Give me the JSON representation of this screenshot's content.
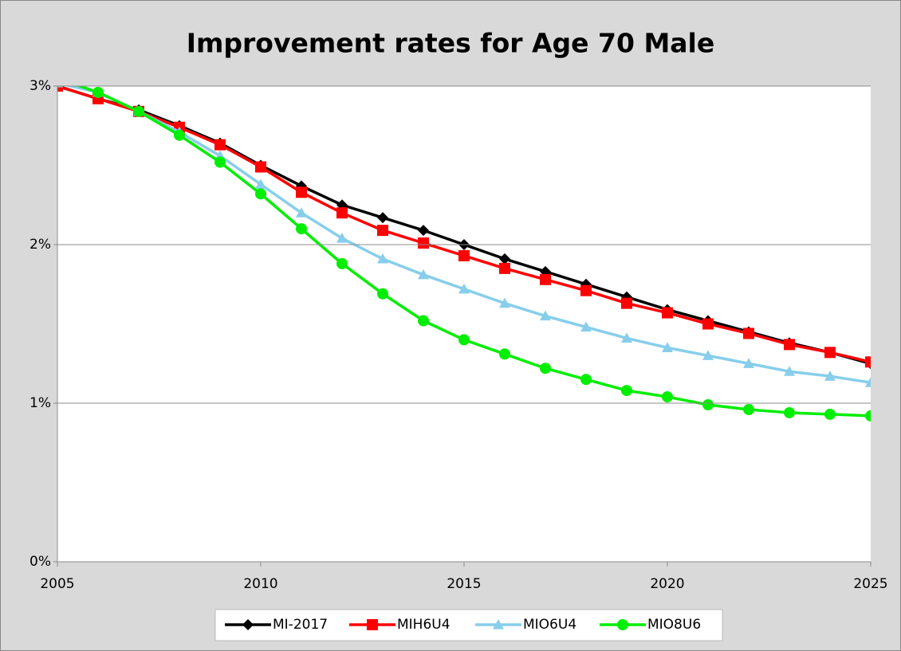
{
  "chart_data": {
    "type": "line",
    "title": "Improvement rates for Age 70 Male",
    "x": [
      2005,
      2006,
      2007,
      2008,
      2009,
      2010,
      2011,
      2012,
      2013,
      2014,
      2015,
      2016,
      2017,
      2018,
      2019,
      2020,
      2021,
      2022,
      2023,
      2024,
      2025
    ],
    "xlim": [
      2005,
      2025
    ],
    "xticks": [
      2005,
      2010,
      2015,
      2020,
      2025
    ],
    "ylim": [
      0,
      3
    ],
    "yticks": [
      {
        "value": 0,
        "label": "0%"
      },
      {
        "value": 1,
        "label": "1%"
      },
      {
        "value": 2,
        "label": "2%"
      },
      {
        "value": 3,
        "label": "3%"
      }
    ],
    "grid": true,
    "legend": "bottom",
    "series": [
      {
        "name": "MI-2017",
        "color": "#000000",
        "marker": "diamond",
        "values": [
          3.0,
          2.92,
          2.85,
          2.75,
          2.64,
          2.5,
          2.37,
          2.25,
          2.17,
          2.09,
          2.0,
          1.91,
          1.83,
          1.75,
          1.67,
          1.59,
          1.52,
          1.45,
          1.38,
          1.32,
          1.25
        ]
      },
      {
        "name": "MIH6U4",
        "color": "#ff0000",
        "marker": "square",
        "values": [
          3.0,
          2.92,
          2.84,
          2.74,
          2.63,
          2.49,
          2.33,
          2.2,
          2.09,
          2.01,
          1.93,
          1.85,
          1.78,
          1.71,
          1.63,
          1.57,
          1.5,
          1.44,
          1.37,
          1.32,
          1.26
        ]
      },
      {
        "name": "MIO6U4",
        "color": "#87ceeb",
        "marker": "triangle",
        "values": [
          3.02,
          2.96,
          2.84,
          2.71,
          2.56,
          2.38,
          2.2,
          2.04,
          1.91,
          1.81,
          1.72,
          1.63,
          1.55,
          1.48,
          1.41,
          1.35,
          1.3,
          1.25,
          1.2,
          1.17,
          1.13
        ]
      },
      {
        "name": "MIO8U6",
        "color": "#00ee00",
        "marker": "circle",
        "values": [
          3.05,
          2.96,
          2.84,
          2.69,
          2.52,
          2.32,
          2.1,
          1.88,
          1.69,
          1.52,
          1.4,
          1.31,
          1.22,
          1.15,
          1.08,
          1.04,
          0.99,
          0.96,
          0.94,
          0.93,
          0.92
        ]
      }
    ]
  }
}
